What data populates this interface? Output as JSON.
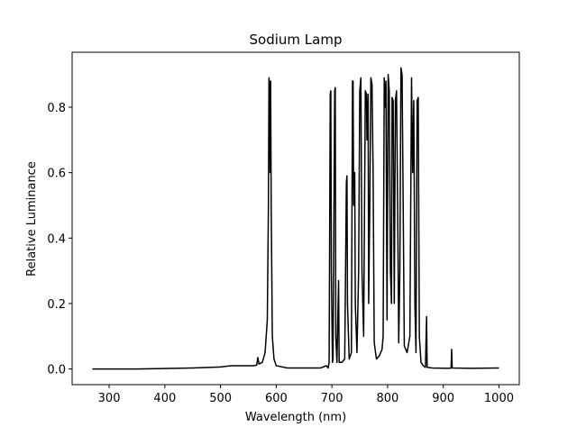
{
  "chart_data": {
    "type": "line",
    "title": "Sodium Lamp",
    "x_label": "Wavelength (nm)",
    "y_label": "Relative Luminance",
    "color": "#000000",
    "x": [
      270,
      350,
      450,
      500,
      520,
      560,
      565,
      567,
      569,
      575,
      580,
      584,
      586,
      587,
      588,
      589,
      590,
      591,
      593,
      596,
      600,
      620,
      680,
      690,
      693,
      695,
      697,
      698,
      699,
      701,
      702,
      705,
      706,
      707,
      709,
      712,
      713,
      718,
      723,
      726,
      727,
      728,
      731,
      735,
      737,
      738,
      739,
      741,
      742,
      745,
      748,
      750,
      752,
      754,
      757,
      760,
      762,
      763,
      765,
      766,
      768,
      770,
      772,
      774,
      776,
      780,
      785,
      790,
      792,
      794,
      795,
      797,
      799,
      801,
      803,
      805,
      807,
      808,
      810,
      812,
      814,
      816,
      818,
      820,
      822,
      824,
      826,
      828,
      830,
      835,
      840,
      843,
      845,
      847,
      849,
      851,
      853,
      855,
      857,
      860,
      864,
      868,
      870,
      871,
      880,
      910,
      914,
      915,
      916,
      950,
      1000
    ],
    "values": [
      0,
      0,
      0.003,
      0.006,
      0.01,
      0.01,
      0.012,
      0.035,
      0.015,
      0.02,
      0.05,
      0.15,
      0.5,
      0.89,
      0.86,
      0.6,
      0.88,
      0.5,
      0.1,
      0.03,
      0.01,
      0.003,
      0.003,
      0.01,
      0.003,
      0.02,
      0.84,
      0.85,
      0.3,
      0.02,
      0.03,
      0.85,
      0.86,
      0.1,
      0.02,
      0.27,
      0.02,
      0.02,
      0.03,
      0.57,
      0.59,
      0.2,
      0.03,
      0.05,
      0.88,
      0.88,
      0.5,
      0.6,
      0.2,
      0.05,
      0.3,
      0.85,
      0.89,
      0.3,
      0.1,
      0.85,
      0.84,
      0.7,
      0.84,
      0.2,
      0.5,
      0.89,
      0.87,
      0.6,
      0.08,
      0.03,
      0.04,
      0.06,
      0.1,
      0.89,
      0.8,
      0.88,
      0.15,
      0.9,
      0.85,
      0.3,
      0.2,
      0.83,
      0.82,
      0.2,
      0.82,
      0.85,
      0.5,
      0.08,
      0.3,
      0.92,
      0.9,
      0.5,
      0.07,
      0.05,
      0.1,
      0.89,
      0.6,
      0.82,
      0.2,
      0.05,
      0.82,
      0.83,
      0.1,
      0.02,
      0.01,
      0.005,
      0.16,
      0.005,
      0.003,
      0.002,
      0.003,
      0.06,
      0.003,
      0.002,
      0.003
    ],
    "xlim": [
      233.5,
      1036.5
    ],
    "ylim": [
      -0.048,
      0.968
    ],
    "xticks": [
      300,
      400,
      500,
      600,
      700,
      800,
      900,
      1000
    ],
    "yticks": [
      {
        "value": 0,
        "label": "0.0"
      },
      0.2,
      0.4,
      0.6,
      0.8
    ]
  }
}
